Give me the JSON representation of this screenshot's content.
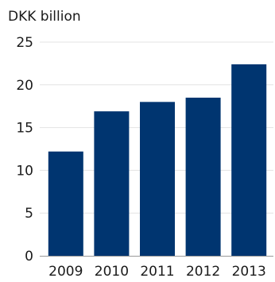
{
  "chart_data": {
    "type": "bar",
    "title": "",
    "unit_label": "DKK billion",
    "xlabel": "",
    "ylabel": "",
    "categories": [
      "2009",
      "2010",
      "2011",
      "2012",
      "2013"
    ],
    "values": [
      12.2,
      16.9,
      18.0,
      18.5,
      22.4
    ],
    "ylim": [
      0,
      25
    ],
    "yticks": [
      "0",
      "5",
      "10",
      "15",
      "20",
      "25"
    ],
    "grid": true,
    "legend": "none",
    "colors": {
      "bar": "#003570",
      "grid": "#e3e3e3",
      "axis": "#999999",
      "text": "#1a1a1a"
    }
  }
}
